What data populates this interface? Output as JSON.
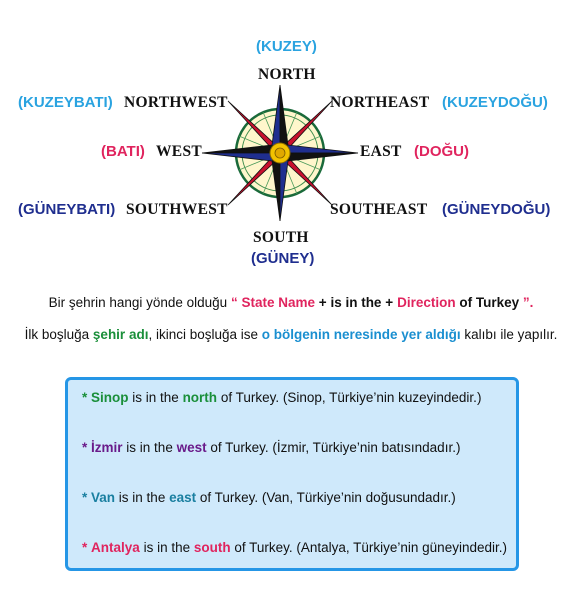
{
  "compass": {
    "north": "NORTH",
    "north_tr": "(KUZEY)",
    "northwest": "NORTHWEST",
    "northwest_tr": "(KUZEYBATI)",
    "northeast": "NORTHEAST",
    "northeast_tr": "(KUZEYDOĞU)",
    "west": "WEST",
    "west_tr": "(BATI)",
    "east": "EAST",
    "east_tr": "(DOĞU)",
    "southwest": "SOUTHWEST",
    "southwest_tr": "(GÜNEYBATI)",
    "southeast": "SOUTHEAST",
    "southeast_tr": "(GÜNEYDOĞU)",
    "south": "SOUTH",
    "south_tr": "(GÜNEY)"
  },
  "explanation": {
    "line1_a": "Bir şehrin hangi yönde olduğu",
    "line1_q_open": "“",
    "line1_state": "State Name",
    "line1_plus1": "+",
    "line1_isin": "is in the",
    "line1_plus2": "+",
    "line1_direction": "Direction",
    "line1_of": "of Turkey",
    "line1_q_close": "”.",
    "line2_a": "İlk boşluğa",
    "line2_city": "şehir adı",
    "line2_b": ", ikinci boşluğa ise",
    "line2_region": "o bölgenin neresinde yer aldığı",
    "line2_c": "kalıbı ile yapılır."
  },
  "examples": [
    {
      "star": "*",
      "city": "Sinop",
      "mid": " is in the ",
      "dir": "north",
      "end": " of Turkey. (Sinop, Türkiye’nin kuzeyindedir.)"
    },
    {
      "star": "*",
      "city": "İzmir",
      "mid": " is in the ",
      "dir": "west",
      "end": " of Turkey. (İzmir, Türkiye’nin batısındadır.)"
    },
    {
      "star": "*",
      "city": "Van",
      "mid": " is in the ",
      "dir": "east",
      "end": " of Turkey. (Van, Türkiye’nin doğusundadır.)"
    },
    {
      "star": "*",
      "city": "Antalya",
      "mid": " is in the ",
      "dir": "south",
      "end": " of Turkey. (Antalya, Türkiye’nin güneyindedir.)"
    }
  ],
  "colors": {
    "turkish_blue": "#2aa3e0",
    "turkish_red": "#e0245e",
    "turkish_navy": "#1f2e8f",
    "box_border": "#2596e6",
    "box_fill": "#cfe9fb"
  }
}
